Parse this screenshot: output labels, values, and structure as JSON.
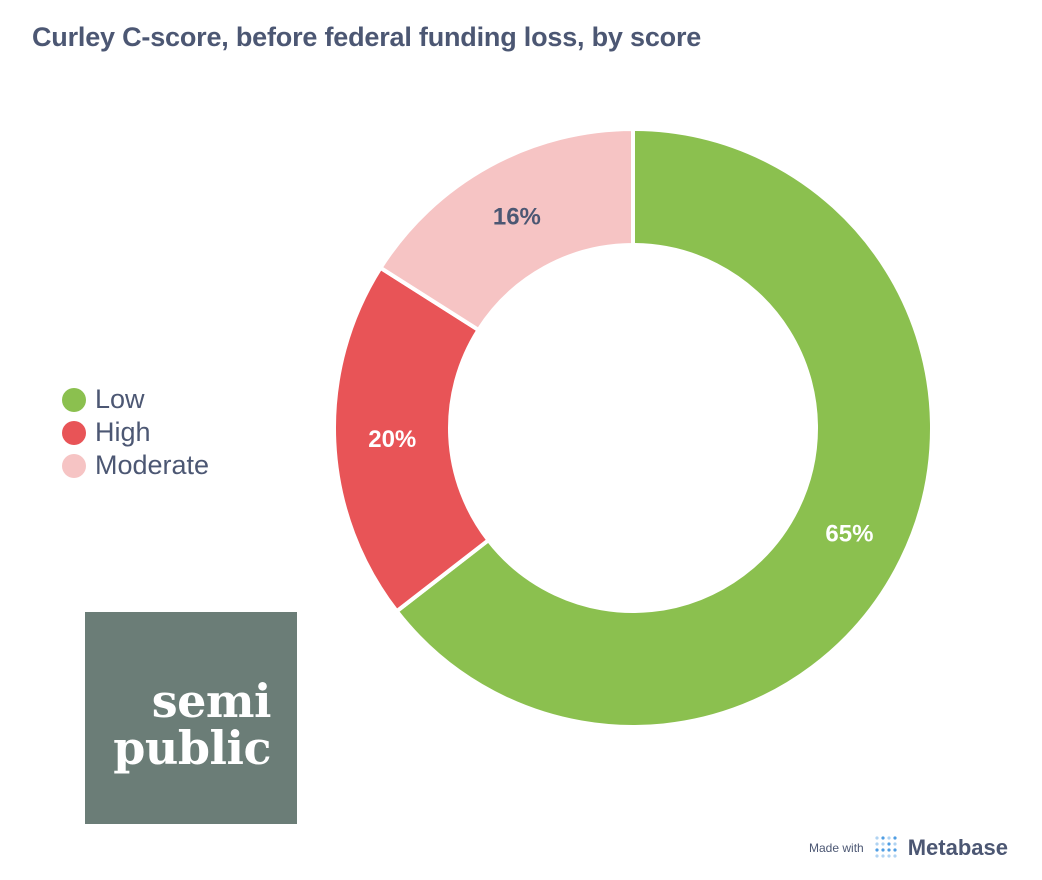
{
  "title": "Curley C-score, before federal funding loss, by score",
  "chart_data": {
    "type": "pie",
    "variant": "donut",
    "title": "Curley C-score, before federal funding loss, by score",
    "legend_position": "left",
    "slices": [
      {
        "label": "Low",
        "value": 0.645,
        "percent_label": "65%",
        "color": "#8bc04f",
        "label_color": "#ffffff"
      },
      {
        "label": "High",
        "value": 0.195,
        "percent_label": "20%",
        "color": "#e85457",
        "label_color": "#ffffff"
      },
      {
        "label": "Moderate",
        "value": 0.16,
        "percent_label": "16%",
        "color": "#f6c4c4",
        "label_color": "#4c5773"
      }
    ]
  },
  "logo": {
    "line1": "semi",
    "line2": "public",
    "color": "#6b7d77"
  },
  "footer": {
    "made_with": "Made with",
    "brand": "Metabase",
    "icon": "metabase-logo-icon"
  }
}
